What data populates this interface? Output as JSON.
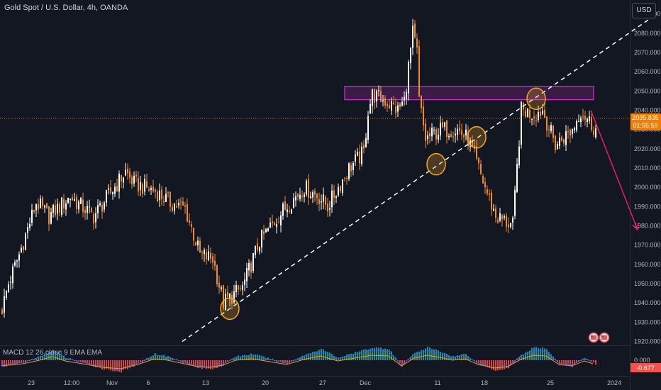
{
  "header": {
    "title": "Gold Spot / U.S. Dollar, 4h, OANDA",
    "currency_button": "USD"
  },
  "price_badge": {
    "price": "2035.835",
    "countdown": "01:55:59"
  },
  "macd": {
    "label": "MACD 12 26 close 9 EMA EMA",
    "zero_label": "0.000",
    "value_label": "-0.677"
  },
  "colors": {
    "background": "#131722",
    "up_candle": "#ffffff",
    "down_candle": "#f08a24",
    "zone": "#cc33cc",
    "arrow": "#e91e63",
    "marker": "#f5a623",
    "price_line": "#f57c00",
    "macd_pos": "#26a69a",
    "macd_neg": "#ef5350"
  },
  "chart_data": {
    "type": "candlestick",
    "title": "Gold Spot / U.S. Dollar, 4h, OANDA",
    "ylim": [
      1918,
      2098
    ],
    "y_ticks": [
      1920,
      1930,
      1940,
      1950,
      1960,
      1970,
      1980,
      1990,
      2000,
      2010,
      2020,
      2030,
      2040,
      2050,
      2060,
      2070,
      2080,
      2090
    ],
    "x_ticks": [
      "23",
      "12:00",
      "Nov",
      "6",
      "13",
      "20",
      "27",
      "Dec",
      "11",
      "18",
      "25",
      "2024"
    ],
    "current_price": 2035.835,
    "close_path_points": [
      [
        0,
        1937
      ],
      [
        3,
        1950
      ],
      [
        8,
        1965
      ],
      [
        16,
        1992
      ],
      [
        22,
        1985
      ],
      [
        32,
        1995
      ],
      [
        43,
        1985
      ],
      [
        58,
        2008
      ],
      [
        62,
        2002
      ],
      [
        72,
        1998
      ],
      [
        79,
        1992
      ],
      [
        86,
        1989
      ],
      [
        93,
        1965
      ],
      [
        99,
        1963
      ],
      [
        104,
        1940
      ],
      [
        113,
        1948
      ],
      [
        121,
        1972
      ],
      [
        132,
        1988
      ],
      [
        142,
        2000
      ],
      [
        149,
        1995
      ],
      [
        153,
        1990
      ],
      [
        163,
        2010
      ],
      [
        170,
        2018
      ],
      [
        172,
        2040
      ],
      [
        174,
        2048
      ],
      [
        180,
        2045
      ],
      [
        186,
        2040
      ],
      [
        189,
        2045
      ],
      [
        193,
        2080
      ],
      [
        195,
        2070
      ],
      [
        196,
        2045
      ],
      [
        199,
        2025
      ],
      [
        206,
        2030
      ],
      [
        214,
        2030
      ],
      [
        219,
        2025
      ],
      [
        227,
        2000
      ],
      [
        232,
        1985
      ],
      [
        240,
        1980
      ],
      [
        244,
        2040
      ],
      [
        250,
        2038
      ],
      [
        254,
        2040
      ],
      [
        260,
        2022
      ],
      [
        268,
        2030
      ],
      [
        272,
        2040
      ],
      [
        279,
        2030
      ]
    ],
    "annotations": {
      "resistance_zone": [
        2045.5,
        2052.5
      ],
      "trendline": {
        "from": [
          85,
          1920
        ],
        "to": [
          308,
          2090
        ],
        "style": "dashed"
      },
      "forecast_arrow": {
        "from": [
          277,
          2040
        ],
        "to": [
          299,
          1978
        ]
      },
      "touch_markers": [
        [
          107,
          1937
        ],
        [
          204,
          2012
        ],
        [
          223,
          2026
        ],
        [
          251,
          2046
        ]
      ],
      "event_markers": [
        278,
        283
      ]
    },
    "indicator": {
      "name": "MACD",
      "histogram_points": [
        [
          0,
          -0.5
        ],
        [
          10,
          -0.2
        ],
        [
          18,
          0.3
        ],
        [
          24,
          0.8
        ],
        [
          30,
          0.2
        ],
        [
          38,
          -0.2
        ],
        [
          48,
          -0.7
        ],
        [
          56,
          -0.9
        ],
        [
          64,
          -0.3
        ],
        [
          72,
          0.5
        ],
        [
          78,
          0.3
        ],
        [
          86,
          -0.2
        ],
        [
          92,
          -0.6
        ],
        [
          98,
          -0.7
        ],
        [
          104,
          -0.4
        ],
        [
          110,
          0.3
        ],
        [
          118,
          0.5
        ],
        [
          126,
          0.1
        ],
        [
          134,
          -0.3
        ],
        [
          142,
          0.4
        ],
        [
          150,
          0.9
        ],
        [
          158,
          0.2
        ],
        [
          166,
          0.6
        ],
        [
          174,
          1.0
        ],
        [
          182,
          0.9
        ],
        [
          188,
          -0.5
        ],
        [
          194,
          0.6
        ],
        [
          200,
          1.0
        ],
        [
          206,
          0.7
        ],
        [
          212,
          0.3
        ],
        [
          218,
          0.5
        ],
        [
          224,
          -0.3
        ],
        [
          232,
          -0.8
        ],
        [
          238,
          -0.6
        ],
        [
          244,
          0.4
        ],
        [
          250,
          1.0
        ],
        [
          256,
          0.9
        ],
        [
          262,
          -0.3
        ],
        [
          268,
          -0.5
        ],
        [
          274,
          0.2
        ],
        [
          280,
          -0.4
        ]
      ]
    }
  }
}
